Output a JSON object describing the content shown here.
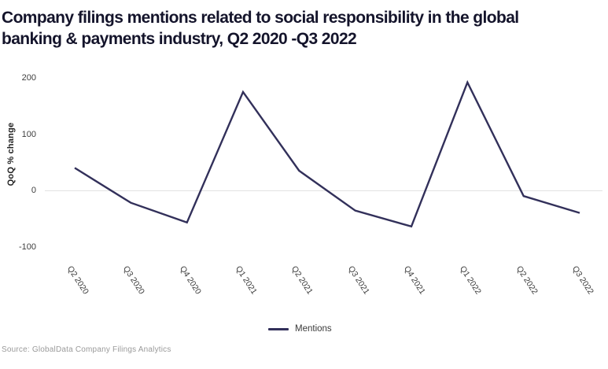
{
  "title": {
    "line1": "Company filings mentions related to social responsibility in the global",
    "line2": "banking & payments industry, Q2 2020 -Q3 2022"
  },
  "source": "Source: GlobalData Company Filings Analytics",
  "colors": {
    "line": "#32305a",
    "title_text": "#14142b",
    "axis_text": "#3d3d3d",
    "gridline": "#e2e2e2",
    "source_text": "#9a9a9a"
  },
  "chart_data": {
    "type": "line",
    "title": "Company filings mentions related to social responsibility in the global banking & payments industry, Q2 2020 -Q3 2022",
    "xlabel": "",
    "ylabel": "QoQ % change",
    "categories": [
      "Q2 2020",
      "Q3 2020",
      "Q4 2020",
      "Q1 2021",
      "Q2 2021",
      "Q3 2021",
      "Q4 2021",
      "Q1 2022",
      "Q2 2022",
      "Q3 2022"
    ],
    "series": [
      {
        "name": "Mentions",
        "values": [
          40,
          -22,
          -57,
          175,
          35,
          -36,
          -64,
          192,
          -10,
          -40
        ]
      }
    ],
    "yticks": [
      200,
      100,
      0,
      -100
    ],
    "ylim": [
      -130,
      210
    ],
    "grid": "zero-line-only",
    "legend_position": "bottom-center"
  }
}
